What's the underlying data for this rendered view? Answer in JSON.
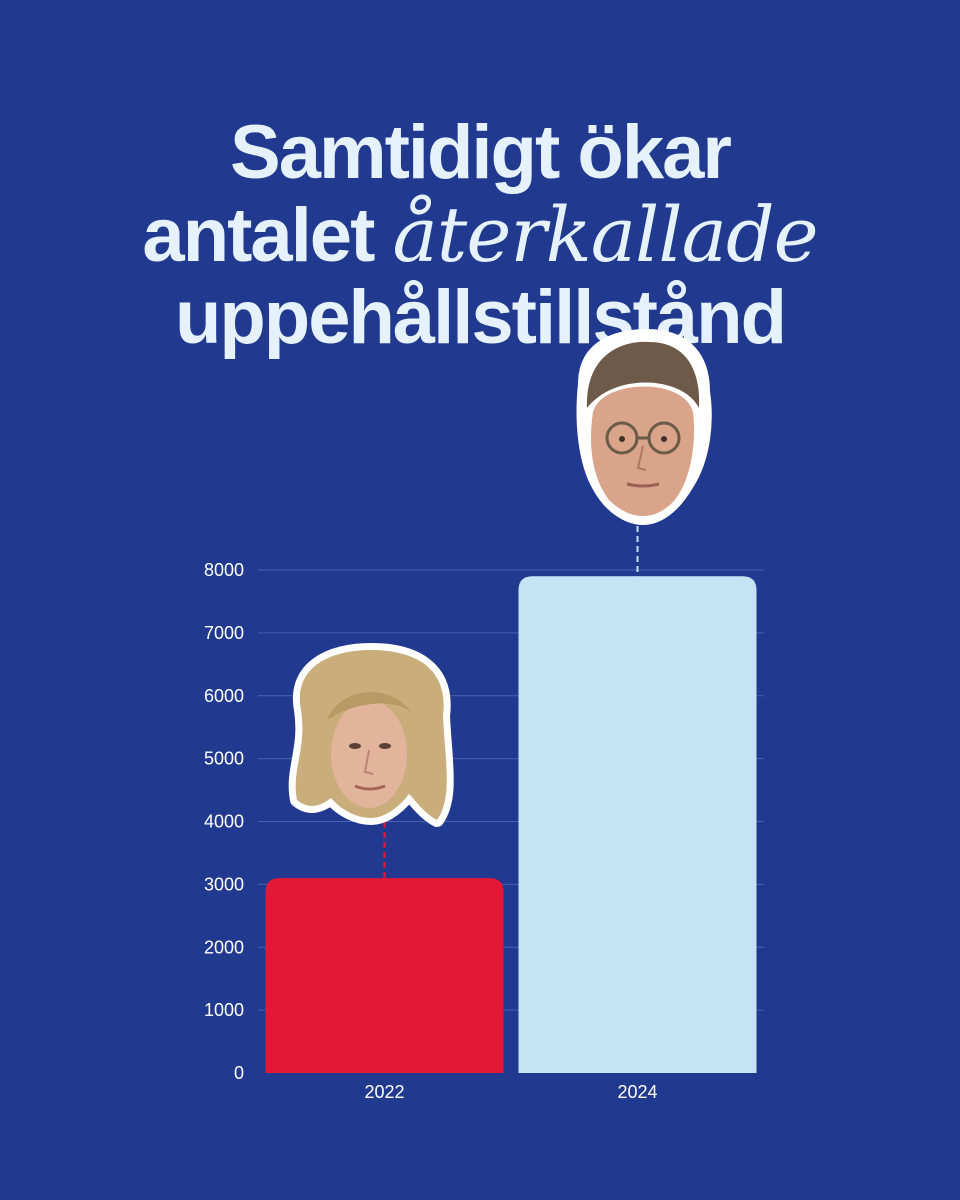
{
  "title": {
    "line1": "Samtidigt ökar",
    "line2_plain": "antalet ",
    "line2_emph": "återkallade",
    "line3": "uppehållstillstånd"
  },
  "colors": {
    "background": "#213a8f",
    "title": "#e6f2fb",
    "bar_2022": "#e31837",
    "bar_2024": "#c5e3f5",
    "grid": "#4a5fae"
  },
  "chart_data": {
    "type": "bar",
    "categories": [
      "2022",
      "2024"
    ],
    "values": [
      3100,
      7900
    ],
    "bar_colors": [
      "#e31837",
      "#c5e3f5"
    ],
    "ylim": [
      0,
      8000
    ],
    "yticks": [
      0,
      1000,
      2000,
      3000,
      4000,
      5000,
      6000,
      7000,
      8000
    ],
    "grid": true,
    "xlabel": "",
    "ylabel": ""
  }
}
